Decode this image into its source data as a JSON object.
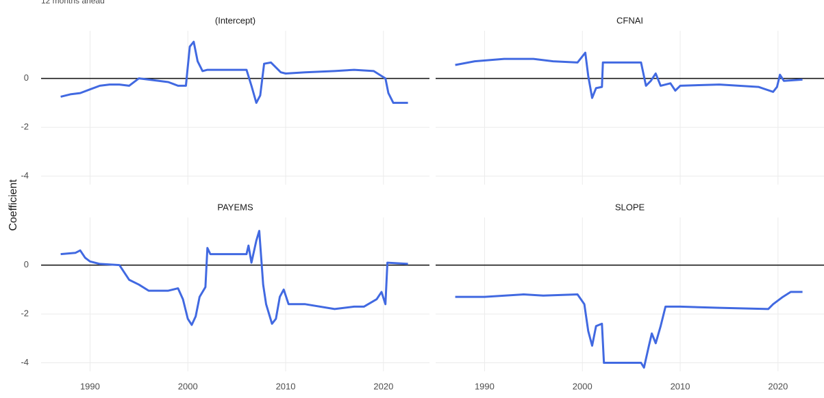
{
  "subtitle": "12 months ahead",
  "y_label": "Coefficient",
  "chart_data": [
    {
      "type": "line",
      "title": "(Intercept)",
      "color": "#4169e1",
      "x": [
        1987,
        1988,
        1989,
        1990,
        1991,
        1992,
        1993,
        1994,
        1995,
        1996,
        1998,
        1999,
        1999.8,
        2000.2,
        2000.6,
        2001,
        2001.5,
        2002,
        2006,
        2006.5,
        2007,
        2007.4,
        2007.8,
        2008.5,
        2009.5,
        2010,
        2012,
        2015,
        2017,
        2019,
        2019.8,
        2020.2,
        2020.5,
        2021,
        2022.5
      ],
      "values": [
        -0.75,
        -0.65,
        -0.6,
        -0.45,
        -0.3,
        -0.25,
        -0.25,
        -0.3,
        0.0,
        -0.05,
        -0.15,
        -0.3,
        -0.3,
        1.3,
        1.5,
        0.7,
        0.3,
        0.35,
        0.35,
        -0.3,
        -1.0,
        -0.7,
        0.6,
        0.65,
        0.25,
        0.2,
        0.25,
        0.3,
        0.35,
        0.3,
        0.1,
        0.0,
        -0.6,
        -1.0,
        -1.0
      ],
      "xlim": [
        1985.0,
        2024.7
      ],
      "xticks": [
        1990,
        2000,
        2010,
        2020
      ],
      "ylim": [
        -4.35,
        1.95
      ],
      "yticks": [
        -4,
        -2,
        0
      ],
      "hline": 0,
      "grid": true
    },
    {
      "type": "line",
      "title": "CFNAI",
      "color": "#4169e1",
      "x": [
        1987,
        1989,
        1992,
        1995,
        1997,
        1999.5,
        2000.3,
        2000.6,
        2001,
        2001.4,
        2002,
        2002.1,
        2006,
        2006.5,
        2007,
        2007.5,
        2008,
        2009,
        2009.5,
        2010,
        2014,
        2018,
        2019.5,
        2019.9,
        2020.2,
        2020.6,
        2022.5
      ],
      "values": [
        0.55,
        0.7,
        0.8,
        0.8,
        0.7,
        0.65,
        1.05,
        0.1,
        -0.8,
        -0.4,
        -0.35,
        0.65,
        0.65,
        -0.3,
        -0.1,
        0.2,
        -0.3,
        -0.2,
        -0.5,
        -0.3,
        -0.25,
        -0.35,
        -0.55,
        -0.35,
        0.15,
        -0.1,
        -0.05
      ],
      "xlim": [
        1985.0,
        2024.7
      ],
      "xticks": [
        1990,
        2000,
        2010,
        2020
      ],
      "ylim": [
        -4.35,
        1.95
      ],
      "yticks": [
        -4,
        -2,
        0
      ],
      "hline": 0,
      "grid": true
    },
    {
      "type": "line",
      "title": "PAYEMS",
      "color": "#4169e1",
      "x": [
        1987,
        1988.5,
        1989,
        1989.5,
        1990,
        1991,
        1993,
        1994,
        1995,
        1996,
        1998,
        1999,
        1999.5,
        2000,
        2000.4,
        2000.8,
        2001.2,
        2001.8,
        2002,
        2002.3,
        2006,
        2006.2,
        2006.5,
        2007,
        2007.3,
        2007.7,
        2008,
        2008.6,
        2009,
        2009.4,
        2009.8,
        2010.3,
        2012,
        2015,
        2017,
        2018,
        2019.3,
        2019.8,
        2020.2,
        2020.4,
        2022.5
      ],
      "values": [
        0.45,
        0.5,
        0.6,
        0.3,
        0.15,
        0.05,
        0.0,
        -0.6,
        -0.8,
        -1.05,
        -1.05,
        -0.95,
        -1.4,
        -2.2,
        -2.45,
        -2.1,
        -1.3,
        -0.9,
        0.7,
        0.45,
        0.45,
        0.8,
        0.1,
        1.0,
        1.4,
        -0.8,
        -1.6,
        -2.4,
        -2.2,
        -1.3,
        -1.0,
        -1.6,
        -1.6,
        -1.8,
        -1.7,
        -1.7,
        -1.4,
        -1.1,
        -1.6,
        0.1,
        0.05
      ],
      "xlim": [
        1985.0,
        2024.7
      ],
      "xticks": [
        1990,
        2000,
        2010,
        2020
      ],
      "ylim": [
        -4.35,
        1.95
      ],
      "yticks": [
        -4,
        -2,
        0
      ],
      "hline": 0,
      "grid": true
    },
    {
      "type": "line",
      "title": "SLOPE",
      "color": "#4169e1",
      "x": [
        1987,
        1990,
        1994,
        1996,
        1999.5,
        2000.2,
        2000.6,
        2001,
        2001.4,
        2002,
        2002.2,
        2006,
        2006.3,
        2006.8,
        2007.1,
        2007.5,
        2008,
        2008.5,
        2010,
        2014,
        2019,
        2019.5,
        2020.5,
        2021.3,
        2022.5
      ],
      "values": [
        -1.3,
        -1.3,
        -1.2,
        -1.25,
        -1.2,
        -1.6,
        -2.7,
        -3.3,
        -2.5,
        -2.4,
        -4.0,
        -4.0,
        -4.2,
        -3.3,
        -2.8,
        -3.2,
        -2.5,
        -1.7,
        -1.7,
        -1.75,
        -1.8,
        -1.6,
        -1.3,
        -1.1,
        -1.1
      ],
      "xlim": [
        1985.0,
        2024.7
      ],
      "xticks": [
        1990,
        2000,
        2010,
        2020
      ],
      "ylim": [
        -4.35,
        1.95
      ],
      "yticks": [
        -4,
        -2,
        0
      ],
      "hline": 0,
      "grid": true
    }
  ]
}
